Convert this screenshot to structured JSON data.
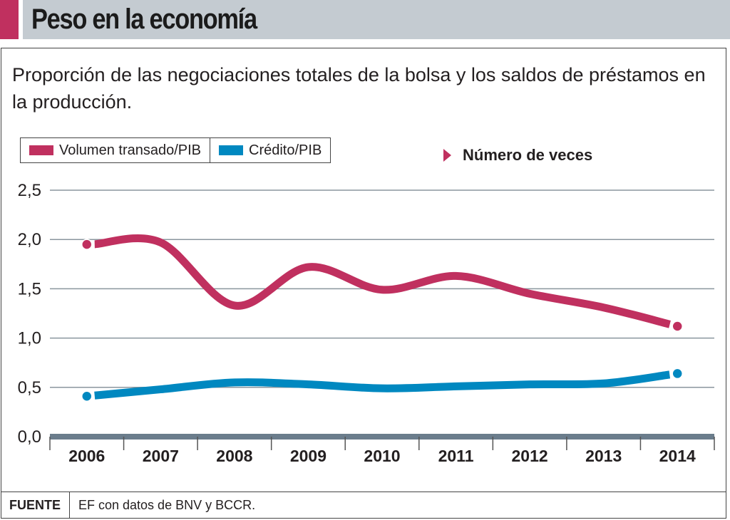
{
  "header": {
    "title": "Peso en la economía"
  },
  "subtitle": "Proporción de las negociaciones totales de la bolsa y los saldos de préstamos en la producción.",
  "unit_label": "Número de veces",
  "footer": {
    "label": "FUENTE",
    "text": "EF con datos de BNV y BCCR."
  },
  "colors": {
    "accent": "#c0305f",
    "volumen": "#c0305f",
    "credito": "#0088c0",
    "axis": "#6b7d8c",
    "grid": "#8a969e",
    "header_band": "#c4cbd1"
  },
  "chart_data": {
    "type": "line",
    "title": "Peso en la economía",
    "subtitle": "Proporción de las negociaciones totales de la bolsa y los saldos de préstamos en la producción.",
    "xlabel": "",
    "ylabel": "Número de veces",
    "x": [
      "2006",
      "2007",
      "2008",
      "2009",
      "2010",
      "2011",
      "2012",
      "2013",
      "2014"
    ],
    "ylim": [
      0,
      2.5
    ],
    "yticks": [
      "0,0",
      "0,5",
      "1,0",
      "1,5",
      "2,0",
      "2,5"
    ],
    "ytick_values": [
      0,
      0.5,
      1.0,
      1.5,
      2.0,
      2.5
    ],
    "grid": true,
    "legend_position": "top-left",
    "series": [
      {
        "name": "Volumen transado/PIB",
        "color": "#c0305f",
        "values": [
          1.95,
          1.97,
          1.33,
          1.72,
          1.49,
          1.63,
          1.45,
          1.31,
          1.12
        ]
      },
      {
        "name": "Crédito/PIB",
        "color": "#0088c0",
        "values": [
          0.41,
          0.48,
          0.55,
          0.53,
          0.49,
          0.51,
          0.53,
          0.54,
          0.64
        ]
      }
    ]
  }
}
